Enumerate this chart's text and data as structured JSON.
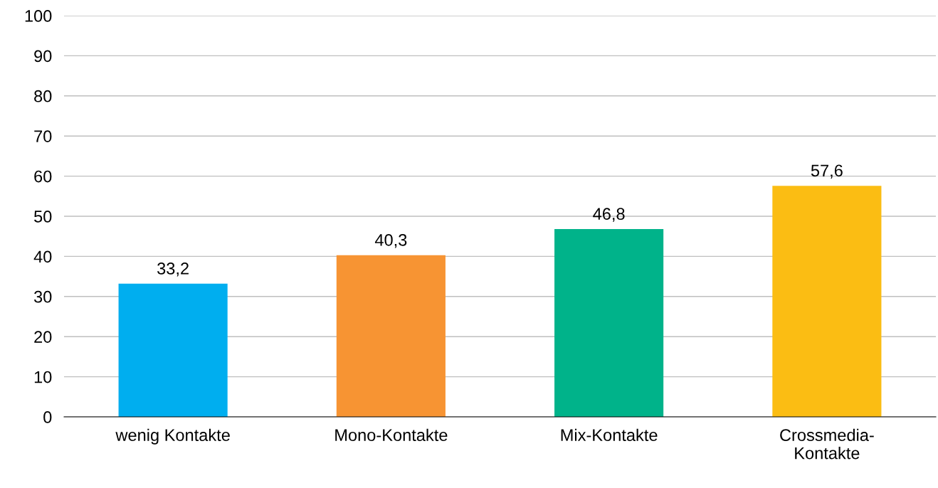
{
  "chart_data": {
    "type": "bar",
    "categories": [
      "wenig Kontakte",
      "Mono-Kontakte",
      "Mix-Kontakte",
      "Crossmedia-\nKontakte"
    ],
    "values": [
      33.2,
      40.3,
      46.8,
      57.6
    ],
    "colors": [
      "#00aeef",
      "#f79433",
      "#00b38a",
      "#fbbd13"
    ],
    "value_labels": [
      "33,2",
      "40,3",
      "46,8",
      "57,6"
    ],
    "ylim": [
      0,
      100
    ],
    "yticks": [
      0,
      10,
      20,
      30,
      40,
      50,
      60,
      70,
      80,
      90,
      100
    ],
    "grid": "y",
    "legend": false
  }
}
